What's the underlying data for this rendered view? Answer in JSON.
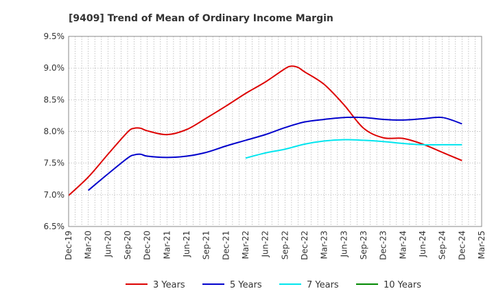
{
  "chart_data": {
    "type": "line",
    "title": "[9409]  Trend of Mean of Ordinary Income Margin",
    "xlabel": "",
    "ylabel": "",
    "x_ticks": [
      "Dec-19",
      "Mar-20",
      "Jun-20",
      "Sep-20",
      "Dec-20",
      "Mar-21",
      "Jun-21",
      "Sep-21",
      "Dec-21",
      "Mar-22",
      "Jun-22",
      "Sep-22",
      "Dec-22",
      "Mar-23",
      "Jun-23",
      "Sep-23",
      "Dec-23",
      "Mar-24",
      "Jun-24",
      "Sep-24",
      "Dec-24",
      "Mar-25"
    ],
    "y_ticks": [
      "6.5%",
      "7.0%",
      "7.5%",
      "8.0%",
      "8.5%",
      "9.0%",
      "9.5%"
    ],
    "ylim": [
      6.5,
      9.5
    ],
    "grid": true,
    "legend_position": "bottom",
    "series": [
      {
        "name": "3 Years",
        "color": "#dd0000",
        "x": [
          "Dec-19",
          "Mar-20",
          "Jun-20",
          "Sep-20",
          "Oct-20",
          "Nov-20",
          "Dec-20",
          "Mar-21",
          "Jun-21",
          "Sep-21",
          "Dec-21",
          "Mar-22",
          "Jun-22",
          "Sep-22",
          "Oct-22",
          "Nov-22",
          "Dec-22",
          "Mar-23",
          "Jun-23",
          "Sep-23",
          "Dec-23",
          "Mar-24",
          "Jun-24",
          "Sep-24",
          "Dec-24"
        ],
        "values": [
          6.99,
          7.28,
          7.64,
          7.99,
          8.05,
          8.05,
          8.01,
          7.95,
          8.03,
          8.21,
          8.4,
          8.6,
          8.78,
          8.99,
          9.03,
          9.01,
          8.94,
          8.74,
          8.42,
          8.05,
          7.9,
          7.89,
          7.8,
          7.67,
          7.54
        ]
      },
      {
        "name": "5 Years",
        "color": "#0000cc",
        "x": [
          "Mar-20",
          "Jun-20",
          "Sep-20",
          "Oct-20",
          "Nov-20",
          "Dec-20",
          "Mar-21",
          "Jun-21",
          "Sep-21",
          "Dec-21",
          "Mar-22",
          "Jun-22",
          "Sep-22",
          "Dec-22",
          "Mar-23",
          "Jun-23",
          "Sep-23",
          "Dec-23",
          "Mar-24",
          "Jun-24",
          "Sep-24",
          "Dec-24"
        ],
        "values": [
          7.07,
          7.33,
          7.58,
          7.63,
          7.64,
          7.61,
          7.59,
          7.61,
          7.67,
          7.77,
          7.86,
          7.95,
          8.06,
          8.15,
          8.19,
          8.22,
          8.22,
          8.19,
          8.18,
          8.2,
          8.22,
          8.12
        ]
      },
      {
        "name": "7 Years",
        "color": "#00e5ee",
        "x": [
          "Mar-22",
          "Jun-22",
          "Sep-22",
          "Dec-22",
          "Mar-23",
          "Jun-23",
          "Sep-23",
          "Dec-23",
          "Mar-24",
          "Jun-24",
          "Sep-24",
          "Dec-24"
        ],
        "values": [
          7.58,
          7.66,
          7.72,
          7.8,
          7.85,
          7.87,
          7.86,
          7.84,
          7.81,
          7.79,
          7.79,
          7.79
        ]
      },
      {
        "name": "10 Years",
        "color": "#008800",
        "x": [],
        "values": []
      }
    ]
  }
}
